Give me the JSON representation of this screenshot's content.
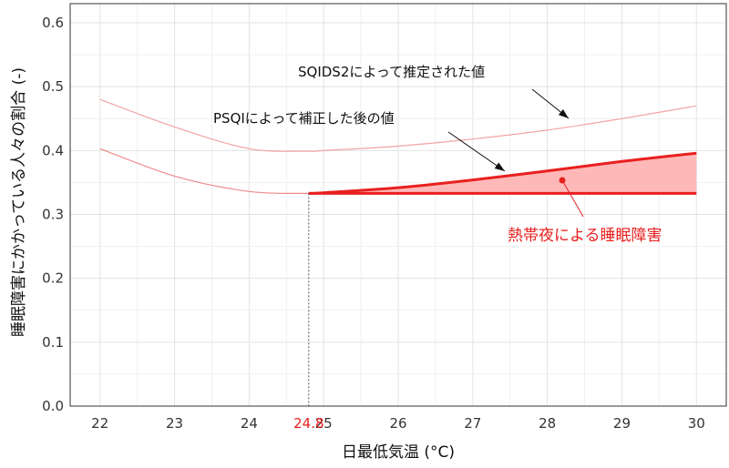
{
  "chart_data": {
    "type": "line",
    "xlabel": "日最低気温 (°C)",
    "ylabel": "睡眠障害にかかっている人々の割合 (-)",
    "xlim": [
      21.6,
      30.4
    ],
    "ylim": [
      0,
      0.63
    ],
    "x_ticks": [
      22,
      23,
      24,
      25,
      26,
      27,
      28,
      29,
      30
    ],
    "y_ticks": [
      0.0,
      0.1,
      0.2,
      0.3,
      0.4,
      0.5,
      0.6
    ],
    "x_tick_labels": [
      "22",
      "23",
      "24",
      "25",
      "26",
      "27",
      "28",
      "29",
      "30"
    ],
    "y_tick_labels": [
      "0.0",
      "0.1",
      "0.2",
      "0.3",
      "0.4",
      "0.5",
      "0.6"
    ],
    "grid": true,
    "threshold": {
      "x": 24.8,
      "label": "24.8",
      "color": "#e8201f"
    },
    "series": [
      {
        "name": "SQIDS2によって推定された値",
        "color": "#f3a3a3",
        "x": [
          22,
          23,
          24,
          24.8,
          25,
          26,
          27,
          28,
          29,
          30
        ],
        "y": [
          0.48,
          0.437,
          0.403,
          0.399,
          0.4,
          0.407,
          0.418,
          0.432,
          0.45,
          0.47
        ]
      },
      {
        "name": "PSQIによって補正した後の値",
        "color": "#f08a8a",
        "x": [
          22,
          23,
          24,
          24.8,
          25,
          26,
          27,
          28,
          29,
          30
        ],
        "y": [
          0.403,
          0.36,
          0.336,
          0.333,
          0.334,
          0.342,
          0.354,
          0.368,
          0.383,
          0.396
        ]
      }
    ],
    "baseline": {
      "y": 0.333,
      "x_from": 24.8,
      "x_to": 30
    },
    "fill_label": "熱帯夜による睡眠障害",
    "annotation_colors": {
      "line": "#e8201f",
      "fill": "#ffb8b8",
      "text": "#e8201f"
    }
  }
}
